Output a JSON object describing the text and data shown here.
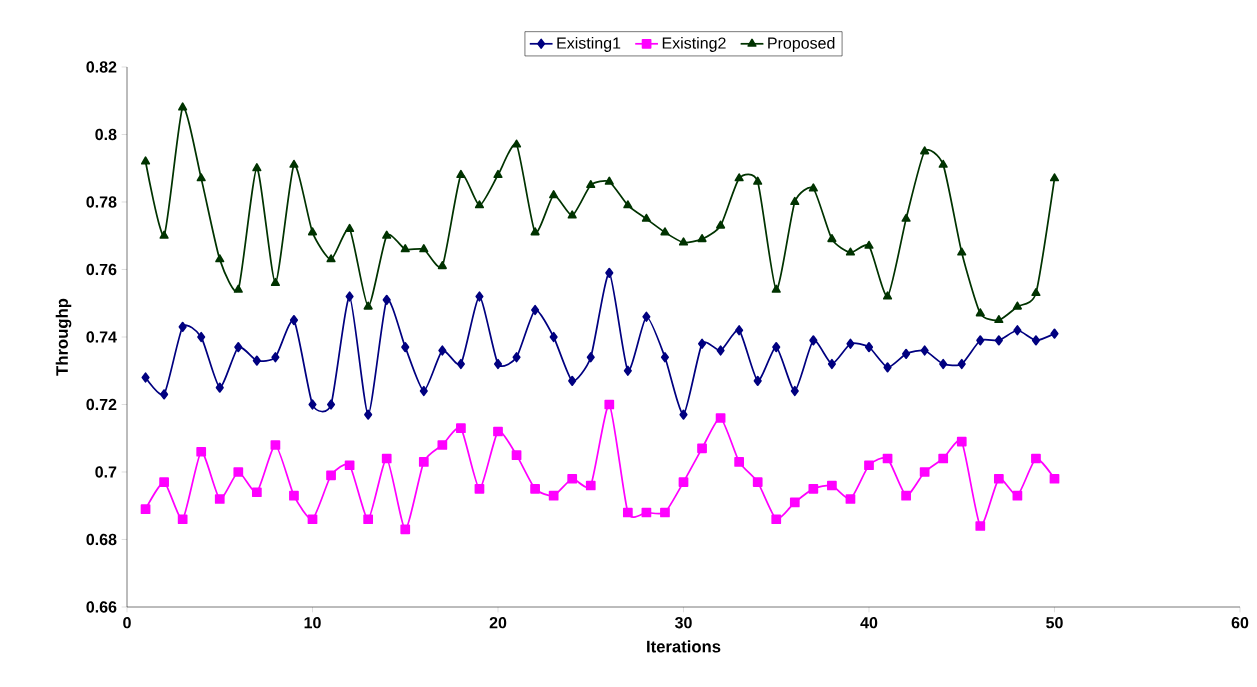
{
  "chart_data": {
    "type": "line",
    "xlabel": "Iterations",
    "ylabel": "Throughp",
    "x": [
      1,
      2,
      3,
      4,
      5,
      6,
      7,
      8,
      9,
      10,
      11,
      12,
      13,
      14,
      15,
      16,
      17,
      18,
      19,
      20,
      21,
      22,
      23,
      24,
      25,
      26,
      27,
      28,
      29,
      30,
      31,
      32,
      33,
      34,
      35,
      36,
      37,
      38,
      39,
      40,
      41,
      42,
      43,
      44,
      45,
      46,
      47,
      48,
      49,
      50
    ],
    "series": [
      {
        "name": "Existing1",
        "color": "#000080",
        "marker": "diamond",
        "values": [
          0.728,
          0.723,
          0.743,
          0.74,
          0.725,
          0.737,
          0.733,
          0.734,
          0.745,
          0.72,
          0.72,
          0.752,
          0.717,
          0.751,
          0.737,
          0.724,
          0.736,
          0.732,
          0.752,
          0.732,
          0.734,
          0.748,
          0.74,
          0.727,
          0.734,
          0.759,
          0.73,
          0.746,
          0.734,
          0.717,
          0.738,
          0.736,
          0.742,
          0.727,
          0.737,
          0.724,
          0.739,
          0.732,
          0.738,
          0.737,
          0.731,
          0.735,
          0.736,
          0.732,
          0.732,
          0.739,
          0.739,
          0.742,
          0.739,
          0.741
        ]
      },
      {
        "name": "Existing2",
        "color": "#ff00ff",
        "marker": "square",
        "values": [
          0.689,
          0.697,
          0.686,
          0.706,
          0.692,
          0.7,
          0.694,
          0.708,
          0.693,
          0.686,
          0.699,
          0.702,
          0.686,
          0.704,
          0.683,
          0.703,
          0.708,
          0.713,
          0.695,
          0.712,
          0.705,
          0.695,
          0.693,
          0.698,
          0.696,
          0.72,
          0.688,
          0.688,
          0.688,
          0.697,
          0.707,
          0.716,
          0.703,
          0.697,
          0.686,
          0.691,
          0.695,
          0.696,
          0.692,
          0.702,
          0.704,
          0.693,
          0.7,
          0.704,
          0.709,
          0.684,
          0.698,
          0.693,
          0.704,
          0.698
        ]
      },
      {
        "name": "Proposed",
        "color": "#003300",
        "marker": "triangle",
        "values": [
          0.792,
          0.77,
          0.808,
          0.787,
          0.763,
          0.754,
          0.79,
          0.756,
          0.791,
          0.771,
          0.763,
          0.772,
          0.749,
          0.77,
          0.766,
          0.766,
          0.761,
          0.788,
          0.779,
          0.788,
          0.797,
          0.771,
          0.782,
          0.776,
          0.785,
          0.786,
          0.779,
          0.775,
          0.771,
          0.768,
          0.769,
          0.773,
          0.787,
          0.786,
          0.754,
          0.78,
          0.784,
          0.769,
          0.765,
          0.767,
          0.752,
          0.775,
          0.795,
          0.791,
          0.765,
          0.747,
          0.745,
          0.749,
          0.753,
          0.787
        ]
      }
    ],
    "xlim": [
      0,
      60
    ],
    "xticks": [
      0,
      10,
      20,
      30,
      40,
      50,
      60
    ],
    "ylim": [
      0.66,
      0.82
    ],
    "yticks": [
      0.66,
      0.68,
      0.7,
      0.72,
      0.74,
      0.76,
      0.78,
      0.8,
      0.82
    ],
    "legend": "top"
  }
}
